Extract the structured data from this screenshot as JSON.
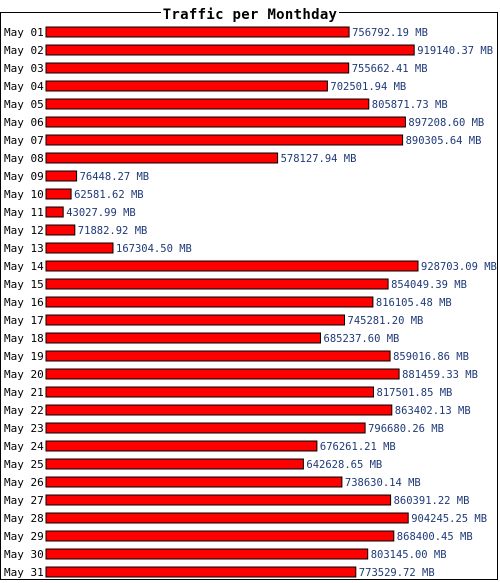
{
  "chart_data": {
    "type": "bar",
    "orientation": "horizontal",
    "title": "Traffic per Monthday",
    "unit": "MB",
    "bar_color": "#ff0000",
    "bar_border_color": "#000000",
    "label_color": "#1f3a78",
    "categories": [
      "May 01",
      "May 02",
      "May 03",
      "May 04",
      "May 05",
      "May 06",
      "May 07",
      "May 08",
      "May 09",
      "May 10",
      "May 11",
      "May 12",
      "May 13",
      "May 14",
      "May 15",
      "May 16",
      "May 17",
      "May 18",
      "May 19",
      "May 20",
      "May 21",
      "May 22",
      "May 23",
      "May 24",
      "May 25",
      "May 26",
      "May 27",
      "May 28",
      "May 29",
      "May 30",
      "May 31"
    ],
    "values": [
      756792.19,
      919140.37,
      755662.41,
      702501.94,
      805871.73,
      897208.6,
      890305.64,
      578127.94,
      76448.27,
      62581.62,
      43027.99,
      71882.92,
      167304.5,
      928703.09,
      854049.39,
      816105.48,
      745281.2,
      685237.6,
      859016.86,
      881459.33,
      817501.85,
      863402.13,
      796680.26,
      676261.21,
      642628.65,
      738630.14,
      860391.22,
      904245.25,
      868400.45,
      803145.0,
      773529.72
    ],
    "value_labels": [
      "756792.19 MB",
      "919140.37 MB",
      "755662.41 MB",
      "702501.94 MB",
      "805871.73 MB",
      "897208.60 MB",
      "890305.64 MB",
      "578127.94 MB",
      "76448.27 MB",
      "62581.62 MB",
      "43027.99 MB",
      "71882.92 MB",
      "167304.50 MB",
      "928703.09 MB",
      "854049.39 MB",
      "816105.48 MB",
      "745281.20 MB",
      "685237.60 MB",
      "859016.86 MB",
      "881459.33 MB",
      "817501.85 MB",
      "863402.13 MB",
      "796680.26 MB",
      "676261.21 MB",
      "642628.65 MB",
      "738630.14 MB",
      "860391.22 MB",
      "904245.25 MB",
      "868400.45 MB",
      "803145.00 MB",
      "773529.72 MB"
    ],
    "grid": false,
    "legend": "none"
  }
}
